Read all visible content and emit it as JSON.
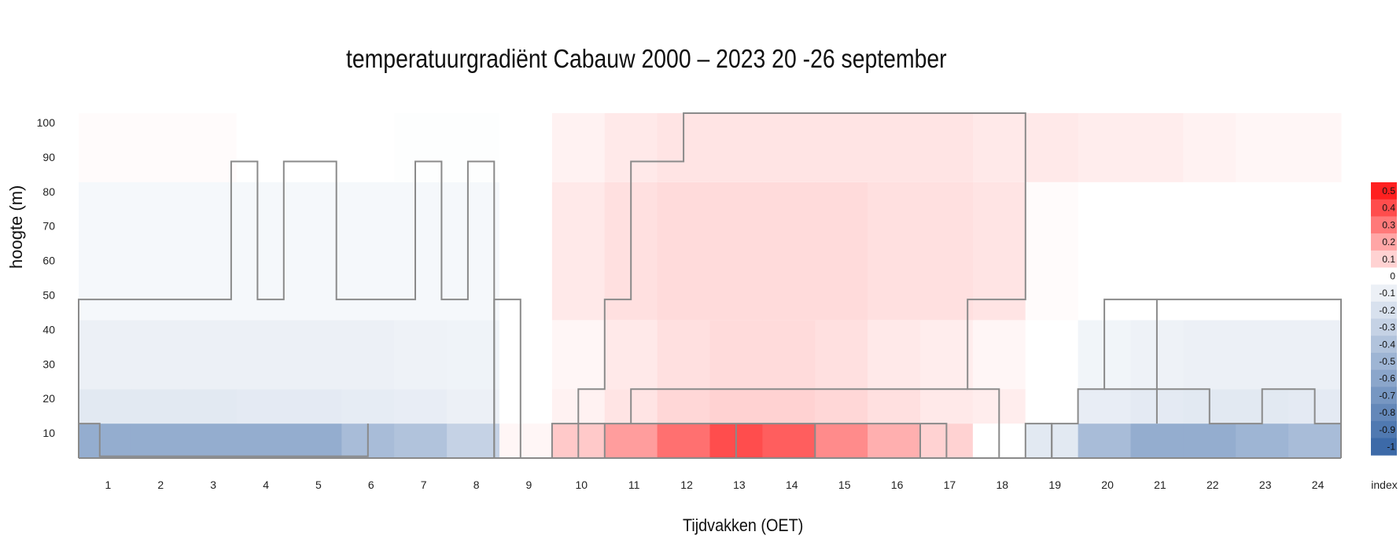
{
  "chart_data": {
    "type": "heatmap",
    "title": "temperatuurgradiënt  Cabauw 2000 – 2023 20 -26 september",
    "xlabel": "Tijdvakken (OET)",
    "ylabel": "hoogte (m)",
    "x_ticks": [
      "1",
      "2",
      "3",
      "4",
      "5",
      "6",
      "7",
      "8",
      "9",
      "10",
      "11",
      "12",
      "13",
      "14",
      "15",
      "16",
      "17",
      "18",
      "19",
      "20",
      "21",
      "22",
      "23",
      "24"
    ],
    "y_ticks": [
      "10",
      "20",
      "30",
      "40",
      "50",
      "60",
      "70",
      "80",
      "90",
      "100"
    ],
    "y_range": [
      0,
      100
    ],
    "x_range": [
      0,
      24
    ],
    "height_bands": [
      "0-10",
      "10-20",
      "20-40",
      "40-80",
      "80-100"
    ],
    "values": [
      [
        -0.55,
        -0.55,
        -0.55,
        -0.55,
        -0.55,
        -0.45,
        -0.4,
        -0.3,
        0.02,
        0.12,
        0.22,
        0.32,
        0.4,
        0.36,
        0.26,
        0.18,
        0.1,
        0.0,
        -0.15,
        -0.45,
        -0.55,
        -0.55,
        -0.5,
        -0.45
      ],
      [
        -0.15,
        -0.15,
        -0.15,
        -0.14,
        -0.14,
        -0.13,
        -0.12,
        -0.1,
        0.0,
        0.03,
        0.06,
        0.09,
        0.1,
        0.1,
        0.09,
        0.07,
        0.05,
        0.04,
        0.0,
        -0.12,
        -0.14,
        -0.15,
        -0.15,
        -0.14
      ],
      [
        -0.1,
        -0.1,
        -0.1,
        -0.1,
        -0.1,
        -0.1,
        -0.09,
        -0.08,
        0.0,
        0.02,
        0.05,
        0.07,
        0.08,
        0.08,
        0.07,
        0.05,
        0.04,
        0.02,
        0.0,
        -0.07,
        -0.09,
        -0.1,
        -0.1,
        -0.1
      ],
      [
        -0.05,
        -0.05,
        -0.05,
        -0.05,
        -0.05,
        -0.05,
        -0.05,
        -0.05,
        0.0,
        0.05,
        0.07,
        0.08,
        0.08,
        0.08,
        0.08,
        0.07,
        0.07,
        0.06,
        0.01,
        0.0,
        0.0,
        0.0,
        0.0,
        0.0
      ],
      [
        0.01,
        0.01,
        0.01,
        0.0,
        0.0,
        0.0,
        -0.01,
        -0.01,
        0.0,
        0.03,
        0.05,
        0.06,
        0.06,
        0.06,
        0.06,
        0.06,
        0.06,
        0.05,
        0.05,
        0.04,
        0.04,
        0.03,
        0.02,
        0.02
      ]
    ],
    "colorbar": {
      "label": "index",
      "ticks": [
        "0.5",
        "0.4",
        "0.3",
        "0.2",
        "0.1",
        "0",
        "-0.1",
        "-0.2",
        "-0.3",
        "-0.4",
        "-0.5",
        "-0.6",
        "-0.7",
        "-0.8",
        "-0.9",
        "-1"
      ],
      "range": [
        -1,
        0.5
      ],
      "colors": {
        "negative": "#3d6aa8",
        "zero": "#ffffff",
        "positive": "#ff2020"
      }
    }
  }
}
